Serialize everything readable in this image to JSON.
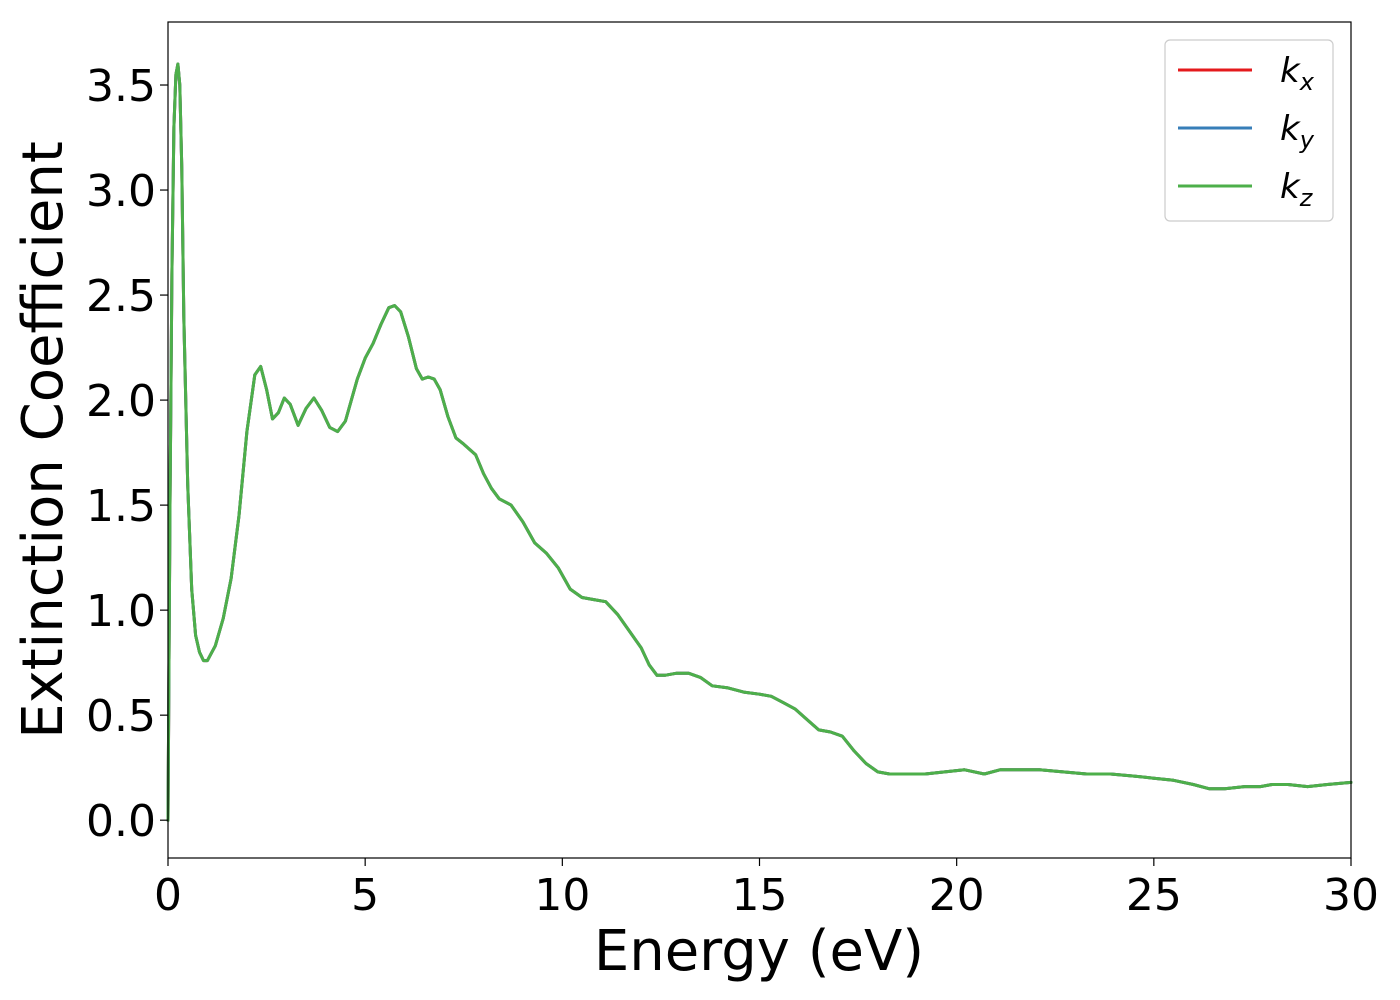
{
  "chart_data": {
    "type": "line",
    "title": "",
    "xlabel": "Energy (eV)",
    "ylabel": "Extinction Coefficient",
    "xlim": [
      0,
      30
    ],
    "ylim": [
      -0.18,
      3.8
    ],
    "xticks": [
      0,
      5,
      10,
      15,
      20,
      25,
      30
    ],
    "xtick_labels": [
      "0",
      "5",
      "10",
      "15",
      "20",
      "25",
      "30"
    ],
    "yticks": [
      0.0,
      0.5,
      1.0,
      1.5,
      2.0,
      2.5,
      3.0,
      3.5
    ],
    "ytick_labels": [
      "0.0",
      "0.5",
      "1.0",
      "1.5",
      "2.0",
      "2.5",
      "3.0",
      "3.5"
    ],
    "grid": false,
    "legend_position": "top-right",
    "x": [
      0.0,
      0.05,
      0.1,
      0.15,
      0.2,
      0.25,
      0.3,
      0.35,
      0.4,
      0.5,
      0.6,
      0.7,
      0.8,
      0.9,
      1.0,
      1.2,
      1.4,
      1.6,
      1.8,
      2.0,
      2.2,
      2.35,
      2.5,
      2.65,
      2.8,
      2.95,
      3.1,
      3.3,
      3.5,
      3.7,
      3.9,
      4.1,
      4.3,
      4.5,
      4.8,
      5.0,
      5.2,
      5.4,
      5.6,
      5.75,
      5.9,
      6.1,
      6.3,
      6.45,
      6.6,
      6.75,
      6.9,
      7.1,
      7.3,
      7.5,
      7.8,
      8.0,
      8.2,
      8.4,
      8.7,
      9.0,
      9.3,
      9.6,
      9.9,
      10.2,
      10.5,
      10.8,
      11.1,
      11.4,
      11.7,
      12.0,
      12.2,
      12.4,
      12.6,
      12.9,
      13.2,
      13.5,
      13.8,
      14.2,
      14.6,
      15.0,
      15.3,
      15.6,
      15.9,
      16.2,
      16.5,
      16.8,
      17.1,
      17.4,
      17.7,
      18.0,
      18.3,
      18.7,
      19.2,
      19.7,
      20.2,
      20.7,
      21.1,
      21.6,
      22.1,
      22.7,
      23.3,
      23.9,
      24.5,
      25.0,
      25.5,
      26.0,
      26.4,
      26.8,
      27.3,
      27.7,
      28.0,
      28.4,
      28.9,
      29.4,
      30.0
    ],
    "series": [
      {
        "name": "k_x",
        "color": "#e41a1c",
        "values": [
          0.0,
          1.5,
          2.6,
          3.3,
          3.55,
          3.6,
          3.5,
          3.1,
          2.4,
          1.6,
          1.1,
          0.88,
          0.8,
          0.76,
          0.76,
          0.83,
          0.96,
          1.15,
          1.45,
          1.85,
          2.12,
          2.16,
          2.05,
          1.91,
          1.94,
          2.01,
          1.98,
          1.88,
          1.96,
          2.01,
          1.95,
          1.87,
          1.85,
          1.9,
          2.1,
          2.2,
          2.27,
          2.36,
          2.44,
          2.45,
          2.42,
          2.3,
          2.15,
          2.1,
          2.11,
          2.1,
          2.05,
          1.92,
          1.82,
          1.79,
          1.74,
          1.65,
          1.58,
          1.53,
          1.5,
          1.42,
          1.32,
          1.27,
          1.2,
          1.1,
          1.06,
          1.05,
          1.04,
          0.98,
          0.9,
          0.82,
          0.74,
          0.69,
          0.69,
          0.7,
          0.7,
          0.68,
          0.64,
          0.63,
          0.61,
          0.6,
          0.59,
          0.56,
          0.53,
          0.48,
          0.43,
          0.42,
          0.4,
          0.33,
          0.27,
          0.23,
          0.22,
          0.22,
          0.22,
          0.23,
          0.24,
          0.22,
          0.24,
          0.24,
          0.24,
          0.23,
          0.22,
          0.22,
          0.21,
          0.2,
          0.19,
          0.17,
          0.15,
          0.15,
          0.16,
          0.16,
          0.17,
          0.17,
          0.16,
          0.17,
          0.18
        ]
      },
      {
        "name": "k_y",
        "color": "#377eb8",
        "values": [
          0.0,
          1.5,
          2.6,
          3.3,
          3.55,
          3.6,
          3.5,
          3.1,
          2.4,
          1.6,
          1.1,
          0.88,
          0.8,
          0.76,
          0.76,
          0.83,
          0.96,
          1.15,
          1.45,
          1.85,
          2.12,
          2.16,
          2.05,
          1.91,
          1.94,
          2.01,
          1.98,
          1.88,
          1.96,
          2.01,
          1.95,
          1.87,
          1.85,
          1.9,
          2.1,
          2.2,
          2.27,
          2.36,
          2.44,
          2.45,
          2.42,
          2.3,
          2.15,
          2.1,
          2.11,
          2.1,
          2.05,
          1.92,
          1.82,
          1.79,
          1.74,
          1.65,
          1.58,
          1.53,
          1.5,
          1.42,
          1.32,
          1.27,
          1.2,
          1.1,
          1.06,
          1.05,
          1.04,
          0.98,
          0.9,
          0.82,
          0.74,
          0.69,
          0.69,
          0.7,
          0.7,
          0.68,
          0.64,
          0.63,
          0.61,
          0.6,
          0.59,
          0.56,
          0.53,
          0.48,
          0.43,
          0.42,
          0.4,
          0.33,
          0.27,
          0.23,
          0.22,
          0.22,
          0.22,
          0.23,
          0.24,
          0.22,
          0.24,
          0.24,
          0.24,
          0.23,
          0.22,
          0.22,
          0.21,
          0.2,
          0.19,
          0.17,
          0.15,
          0.15,
          0.16,
          0.16,
          0.17,
          0.17,
          0.16,
          0.17,
          0.18
        ]
      },
      {
        "name": "k_z",
        "color": "#4daf4a",
        "values": [
          0.0,
          1.5,
          2.6,
          3.3,
          3.55,
          3.6,
          3.5,
          3.1,
          2.4,
          1.6,
          1.1,
          0.88,
          0.8,
          0.76,
          0.76,
          0.83,
          0.96,
          1.15,
          1.45,
          1.85,
          2.12,
          2.16,
          2.05,
          1.91,
          1.94,
          2.01,
          1.98,
          1.88,
          1.96,
          2.01,
          1.95,
          1.87,
          1.85,
          1.9,
          2.1,
          2.2,
          2.27,
          2.36,
          2.44,
          2.45,
          2.42,
          2.3,
          2.15,
          2.1,
          2.11,
          2.1,
          2.05,
          1.92,
          1.82,
          1.79,
          1.74,
          1.65,
          1.58,
          1.53,
          1.5,
          1.42,
          1.32,
          1.27,
          1.2,
          1.1,
          1.06,
          1.05,
          1.04,
          0.98,
          0.9,
          0.82,
          0.74,
          0.69,
          0.69,
          0.7,
          0.7,
          0.68,
          0.64,
          0.63,
          0.61,
          0.6,
          0.59,
          0.56,
          0.53,
          0.48,
          0.43,
          0.42,
          0.4,
          0.33,
          0.27,
          0.23,
          0.22,
          0.22,
          0.22,
          0.23,
          0.24,
          0.22,
          0.24,
          0.24,
          0.24,
          0.23,
          0.22,
          0.22,
          0.21,
          0.2,
          0.19,
          0.17,
          0.15,
          0.15,
          0.16,
          0.16,
          0.17,
          0.17,
          0.16,
          0.17,
          0.18
        ]
      }
    ],
    "legend": [
      {
        "base": "k",
        "sub": "x",
        "color": "#e41a1c"
      },
      {
        "base": "k",
        "sub": "y",
        "color": "#377eb8"
      },
      {
        "base": "k",
        "sub": "z",
        "color": "#4daf4a"
      }
    ]
  }
}
